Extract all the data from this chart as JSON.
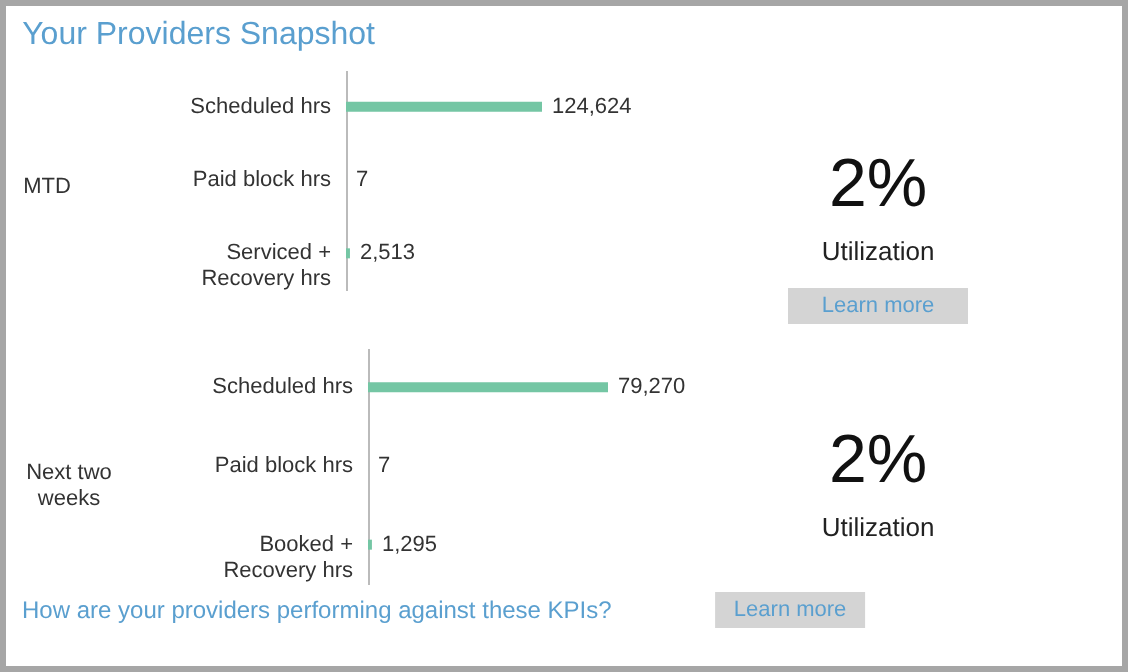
{
  "chart_data": [
    {
      "type": "bar",
      "orientation": "horizontal",
      "title": "Your Providers Snapshot",
      "ylabel": "MTD",
      "categories": [
        "Scheduled hrs",
        "Paid block hrs",
        "Serviced + Recovery hrs"
      ],
      "values": [
        124624,
        7,
        2513
      ],
      "color": "#74c6a4",
      "value_labels": [
        "124,624",
        "7",
        "2,513"
      ]
    },
    {
      "type": "other",
      "annotations": [
        "2%",
        "Utilization",
        "Learn more"
      ]
    },
    {
      "type": "bar",
      "orientation": "horizontal",
      "ylabel": "Next two weeks",
      "categories": [
        "Scheduled hrs",
        "Paid block hrs",
        "Booked + Recovery hrs"
      ],
      "values": [
        79270,
        7,
        1295
      ],
      "color": "#74c6a4",
      "value_labels": [
        "79,270",
        "7",
        "1,295"
      ],
      "annotations": [
        "How are your providers performing against these KPIs?",
        "Learn more"
      ]
    },
    {
      "type": "other",
      "annotations": [
        "2%",
        "Utilization"
      ]
    }
  ]
}
